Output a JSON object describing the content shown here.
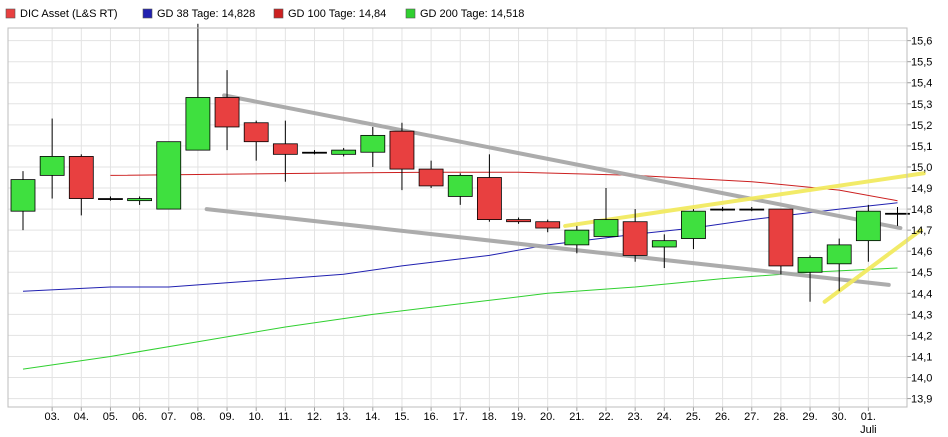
{
  "chart_data": {
    "type": "candlestick",
    "legend": [
      {
        "label": "DIC Asset (L&S RT)",
        "color": "#e84040"
      },
      {
        "label": "GD 38 Tage: 14,828",
        "color": "#2020b0"
      },
      {
        "label": "GD 100 Tage: 14,84",
        "color": "#cc2020"
      },
      {
        "label": "GD 200 Tage: 14,518",
        "color": "#30d030"
      }
    ],
    "x_labels": [
      "03.",
      "04.",
      "05.",
      "06.",
      "07.",
      "08.",
      "09.",
      "10.",
      "11.",
      "12.",
      "13.",
      "14.",
      "15.",
      "16.",
      "17.",
      "18.",
      "19.",
      "20.",
      "21.",
      "22.",
      "23.",
      "24.",
      "25.",
      "26.",
      "27.",
      "28.",
      "29.",
      "30.",
      "01."
    ],
    "x_sublabel": "Juli",
    "y_ticks": [
      "13,9",
      "14,0",
      "14,1",
      "14,2",
      "14,3",
      "14,4",
      "14,5",
      "14,6",
      "14,7",
      "14,8",
      "14,9",
      "15,0",
      "15,1",
      "15,2",
      "15,3",
      "15,4",
      "15,5",
      "15,6"
    ],
    "ylim": [
      13.86,
      15.66
    ],
    "candles": [
      {
        "o": 14.79,
        "h": 14.98,
        "l": 14.7,
        "c": 14.94
      },
      {
        "o": 14.96,
        "h": 15.23,
        "l": 14.85,
        "c": 15.05
      },
      {
        "o": 15.05,
        "h": 15.06,
        "l": 14.77,
        "c": 14.85
      },
      {
        "o": 14.85,
        "h": 14.86,
        "l": 14.84,
        "c": 14.85
      },
      {
        "o": 14.84,
        "h": 14.86,
        "l": 14.82,
        "c": 14.85
      },
      {
        "o": 14.8,
        "h": 15.12,
        "l": 14.8,
        "c": 15.12
      },
      {
        "o": 15.08,
        "h": 15.68,
        "l": 15.08,
        "c": 15.33
      },
      {
        "o": 15.33,
        "h": 15.46,
        "l": 15.08,
        "c": 15.19
      },
      {
        "o": 15.21,
        "h": 15.22,
        "l": 15.03,
        "c": 15.12
      },
      {
        "o": 15.11,
        "h": 15.22,
        "l": 14.93,
        "c": 15.06
      },
      {
        "o": 15.07,
        "h": 15.08,
        "l": 15.06,
        "c": 15.07
      },
      {
        "o": 15.06,
        "h": 15.09,
        "l": 15.05,
        "c": 15.08
      },
      {
        "o": 15.07,
        "h": 15.19,
        "l": 15.0,
        "c": 15.15
      },
      {
        "o": 15.17,
        "h": 15.21,
        "l": 14.89,
        "c": 14.99
      },
      {
        "o": 14.99,
        "h": 15.03,
        "l": 14.9,
        "c": 14.91
      },
      {
        "o": 14.86,
        "h": 14.97,
        "l": 14.82,
        "c": 14.96
      },
      {
        "o": 14.95,
        "h": 15.06,
        "l": 14.74,
        "c": 14.75
      },
      {
        "o": 14.75,
        "h": 14.76,
        "l": 14.73,
        "c": 14.74
      },
      {
        "o": 14.74,
        "h": 14.75,
        "l": 14.69,
        "c": 14.71
      },
      {
        "o": 14.63,
        "h": 14.72,
        "l": 14.59,
        "c": 14.7
      },
      {
        "o": 14.67,
        "h": 14.9,
        "l": 14.67,
        "c": 14.75
      },
      {
        "o": 14.74,
        "h": 14.8,
        "l": 14.55,
        "c": 14.58
      },
      {
        "o": 14.62,
        "h": 14.68,
        "l": 14.52,
        "c": 14.65
      },
      {
        "o": 14.66,
        "h": 14.8,
        "l": 14.61,
        "c": 14.79
      },
      {
        "o": 14.8,
        "h": 14.81,
        "l": 14.79,
        "c": 14.8
      },
      {
        "o": 14.8,
        "h": 14.81,
        "l": 14.79,
        "c": 14.8
      },
      {
        "o": 14.8,
        "h": 14.8,
        "l": 14.49,
        "c": 14.53
      },
      {
        "o": 14.5,
        "h": 14.58,
        "l": 14.36,
        "c": 14.57
      },
      {
        "o": 14.54,
        "h": 14.66,
        "l": 14.41,
        "c": 14.63
      },
      {
        "o": 14.65,
        "h": 14.82,
        "l": 14.55,
        "c": 14.79
      },
      {
        "o": 14.78,
        "h": 14.81,
        "l": 14.72,
        "c": 14.78
      }
    ],
    "moving_averages": [
      {
        "name": "GD 38 Tage",
        "color": "#2020b0",
        "points": [
          [
            0,
            14.41
          ],
          [
            3,
            14.43
          ],
          [
            5,
            14.43
          ],
          [
            7,
            14.45
          ],
          [
            9,
            14.47
          ],
          [
            11,
            14.49
          ],
          [
            13,
            14.53
          ],
          [
            16,
            14.58
          ],
          [
            18,
            14.63
          ],
          [
            21,
            14.68
          ],
          [
            23,
            14.71
          ],
          [
            25,
            14.75
          ],
          [
            28,
            14.8
          ],
          [
            30,
            14.83
          ]
        ]
      },
      {
        "name": "GD 100 Tage",
        "color": "#cc2020",
        "points": [
          [
            3,
            14.96
          ],
          [
            10,
            14.97
          ],
          [
            14,
            14.975
          ],
          [
            17,
            14.975
          ],
          [
            21,
            14.96
          ],
          [
            25,
            14.93
          ],
          [
            28,
            14.89
          ],
          [
            30,
            14.84
          ]
        ]
      },
      {
        "name": "GD 200 Tage",
        "color": "#30d030",
        "points": [
          [
            0,
            14.04
          ],
          [
            3,
            14.1
          ],
          [
            6,
            14.17
          ],
          [
            9,
            14.24
          ],
          [
            12,
            14.3
          ],
          [
            15,
            14.35
          ],
          [
            18,
            14.4
          ],
          [
            21,
            14.43
          ],
          [
            24,
            14.47
          ],
          [
            27,
            14.5
          ],
          [
            30,
            14.52
          ]
        ]
      }
    ],
    "trendlines": [
      {
        "color": "#a8a8a8",
        "from": [
          6.9,
          15.34
        ],
        "to": [
          30.1,
          14.71
        ]
      },
      {
        "color": "#a8a8a8",
        "from": [
          6.3,
          14.8
        ],
        "to": [
          29.7,
          14.44
        ]
      },
      {
        "color": "#f2ea60",
        "from": [
          18.6,
          14.72
        ],
        "to": [
          30.9,
          14.97
        ]
      },
      {
        "color": "#f2ea60",
        "from": [
          27.5,
          14.36
        ],
        "to": [
          30.8,
          14.7
        ]
      }
    ]
  }
}
